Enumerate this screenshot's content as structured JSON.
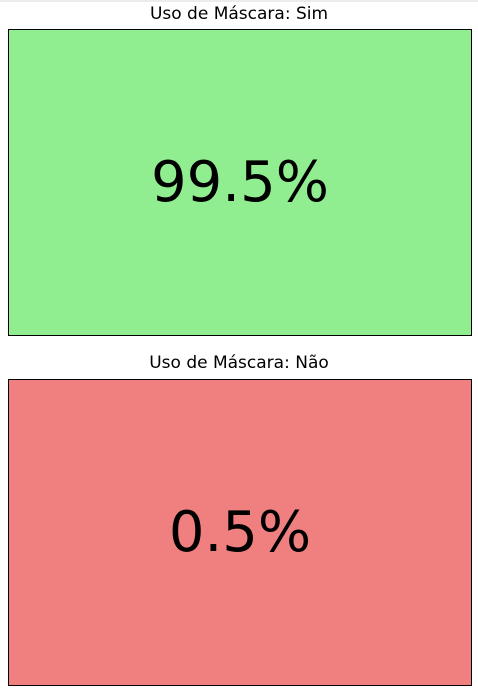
{
  "chart_data": [
    {
      "type": "table",
      "title": "Uso de Máscara: Sim",
      "value": 99.5,
      "value_label": "99.5%",
      "background_color": "#90ee90"
    },
    {
      "type": "table",
      "title": "Uso de Máscara: Não",
      "value": 0.5,
      "value_label": "0.5%",
      "background_color": "#f08080"
    }
  ]
}
